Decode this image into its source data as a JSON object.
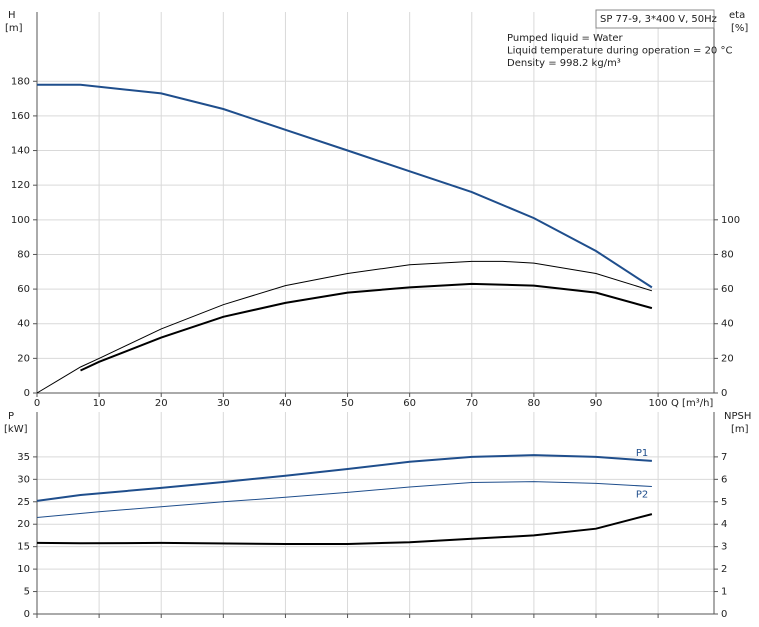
{
  "chart_data": [
    {
      "type": "line",
      "subtitle": "SP 77-9, 3*400 V, 50Hz",
      "annotations": [
        "Pumped liquid = Water",
        "Liquid temperature during operation = 20 °C",
        "Density = 998.2 kg/m³"
      ],
      "x_label": "Q [m³/h]",
      "y_label": "H",
      "y_unit": "[m]",
      "y2_label": "eta",
      "y2_unit": "[%]",
      "xlim": [
        0,
        109
      ],
      "xticks": [
        0,
        10,
        20,
        30,
        40,
        50,
        60,
        70,
        80,
        90,
        100
      ],
      "ylim": [
        0,
        220
      ],
      "yticks": [
        0,
        20,
        40,
        60,
        80,
        100,
        120,
        140,
        160,
        180
      ],
      "y2lim": [
        0,
        220
      ],
      "y2ticks": [
        0,
        20,
        40,
        60,
        80,
        100
      ],
      "grid": true,
      "series": [
        {
          "color": "#1f4e8c",
          "linewidth": 2,
          "x": [
            0,
            7,
            20,
            30,
            40,
            50,
            60,
            70,
            80,
            90,
            99
          ],
          "values": [
            178,
            178,
            173,
            164,
            152,
            140,
            128,
            116,
            101,
            82,
            61
          ]
        },
        {
          "color": "#000000",
          "linewidth": 1,
          "axis": "y2",
          "x": [
            0,
            7,
            10,
            20,
            30,
            40,
            50,
            60,
            70,
            75,
            80,
            90,
            99
          ],
          "values": [
            0,
            15,
            20,
            37,
            51,
            62,
            69,
            74,
            76,
            76,
            75,
            69,
            59
          ]
        },
        {
          "color": "#000000",
          "linewidth": 2,
          "axis": "y2",
          "x": [
            7,
            10,
            20,
            30,
            40,
            50,
            60,
            70,
            80,
            90,
            99
          ],
          "values": [
            13,
            18,
            32,
            44,
            52,
            58,
            61,
            63,
            62,
            58,
            49
          ]
        }
      ]
    },
    {
      "type": "line",
      "y_label": "P",
      "y_unit": "[kW]",
      "y2_label": "NPSH",
      "y2_unit": "[m]",
      "xlim": [
        0,
        109
      ],
      "xticks": [
        0,
        10,
        20,
        30,
        40,
        50,
        60,
        70,
        80,
        90,
        100
      ],
      "ylim": [
        0,
        45
      ],
      "yticks": [
        0,
        5,
        10,
        15,
        20,
        25,
        30,
        35
      ],
      "y2lim": [
        0,
        9
      ],
      "y2ticks": [
        0,
        1,
        2,
        3,
        4,
        5,
        6,
        7
      ],
      "grid": true,
      "series": [
        {
          "name": "P1",
          "color": "#1f4e8c",
          "linewidth": 2,
          "x": [
            0,
            7,
            20,
            30,
            40,
            50,
            60,
            70,
            80,
            90,
            99
          ],
          "values": [
            25.2,
            26.5,
            28.1,
            29.4,
            30.8,
            32.3,
            33.9,
            35.0,
            35.4,
            35.0,
            34.1
          ]
        },
        {
          "name": "P2",
          "color": "#1f4e8c",
          "linewidth": 1,
          "x": [
            0,
            10,
            20,
            30,
            40,
            50,
            60,
            70,
            80,
            90,
            99
          ],
          "values": [
            21.5,
            22.8,
            23.9,
            25.0,
            26.0,
            27.1,
            28.3,
            29.3,
            29.5,
            29.1,
            28.4
          ]
        },
        {
          "color": "#000000",
          "linewidth": 2,
          "axis": "y2",
          "x": [
            0,
            7,
            20,
            40,
            50,
            60,
            70,
            80,
            90,
            99
          ],
          "values": [
            3.17,
            3.15,
            3.17,
            3.12,
            3.12,
            3.2,
            3.35,
            3.5,
            3.8,
            4.45
          ]
        }
      ]
    }
  ]
}
